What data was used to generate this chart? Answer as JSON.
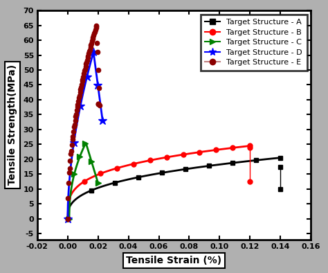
{
  "xlabel": "Tensile Strain (%)",
  "ylabel": "Tensile Strength(MPa)",
  "xlim": [
    -0.02,
    0.16
  ],
  "ylim": [
    -7,
    70
  ],
  "xticks": [
    -0.02,
    0.0,
    0.02,
    0.04,
    0.06,
    0.08,
    0.1,
    0.12,
    0.14,
    0.16
  ],
  "yticks": [
    -5,
    0,
    5,
    10,
    15,
    20,
    25,
    30,
    35,
    40,
    45,
    50,
    55,
    60,
    65,
    70
  ],
  "legend_labels": [
    "Target Structure - A",
    "Target Structure - B",
    "Target Structure - C",
    "Target Structure - D",
    "Target Structure - E"
  ],
  "background_color": "#b0b0b0",
  "plot_bg": "#ffffff"
}
